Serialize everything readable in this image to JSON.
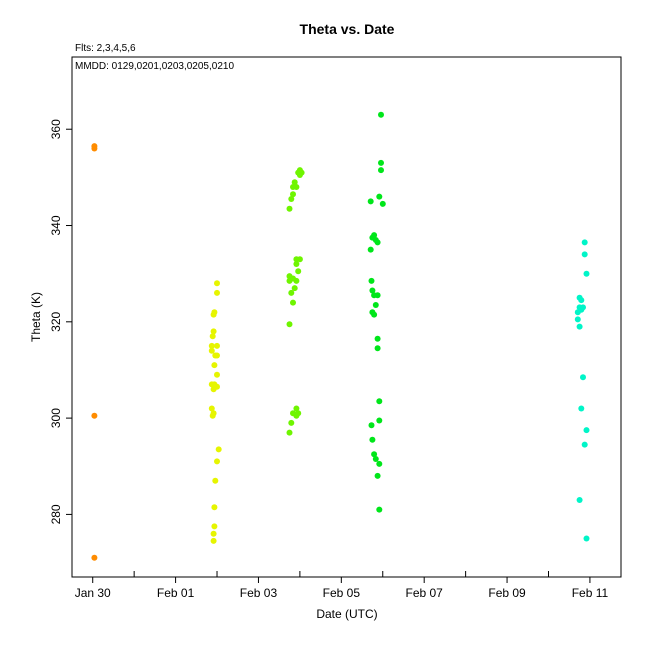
{
  "chart_data": {
    "type": "scatter",
    "title": "Theta  vs. Date",
    "subtitle": "Flts: 2,3,4,5,6",
    "annotation": "MMDD: 0129,0201,0203,0205,0210",
    "xlabel": "Date (UTC)",
    "ylabel": "Theta (K)",
    "xlim": [
      "2012-01-29 12:00",
      "2012-02-11 18:00"
    ],
    "ylim": [
      267,
      375
    ],
    "x_tick_labels": [
      "Jan 30",
      "Feb 01",
      "Feb 03",
      "Feb 05",
      "Feb 07",
      "Feb 09",
      "Feb 11"
    ],
    "y_tick_labels": [
      "280",
      "300",
      "320",
      "340",
      "360"
    ],
    "grid": false,
    "series": [
      {
        "color": "#ff8c00",
        "points": [
          [
            "2012-01-30 01:00",
            356.5
          ],
          [
            "2012-01-30 01:00",
            356.0
          ],
          [
            "2012-01-30 01:00",
            300.5
          ],
          [
            "2012-01-30 01:00",
            271.0
          ]
        ]
      },
      {
        "color": "#e6f500",
        "points": [
          [
            "2012-02-01 21:00",
            302.0
          ],
          [
            "2012-02-01 21:00",
            315.0
          ],
          [
            "2012-02-01 21:00",
            314.0
          ],
          [
            "2012-02-01 21:00",
            307.0
          ],
          [
            "2012-02-01 21:30",
            300.5
          ],
          [
            "2012-02-01 21:30",
            317.0
          ],
          [
            "2012-02-01 22:00",
            321.5
          ],
          [
            "2012-02-01 22:00",
            318.0
          ],
          [
            "2012-02-01 22:00",
            306.0
          ],
          [
            "2012-02-01 22:00",
            301.0
          ],
          [
            "2012-02-01 22:00",
            276.0
          ],
          [
            "2012-02-01 22:00",
            274.5
          ],
          [
            "2012-02-01 22:30",
            322.0
          ],
          [
            "2012-02-01 22:30",
            311.0
          ],
          [
            "2012-02-01 22:30",
            307.0
          ],
          [
            "2012-02-01 22:30",
            281.5
          ],
          [
            "2012-02-01 22:30",
            277.5
          ],
          [
            "2012-02-01 23:00",
            313.0
          ],
          [
            "2012-02-01 23:00",
            287.0
          ],
          [
            "2012-02-02 00:00",
            328.0
          ],
          [
            "2012-02-02 00:00",
            326.0
          ],
          [
            "2012-02-02 00:00",
            315.0
          ],
          [
            "2012-02-02 00:00",
            313.0
          ],
          [
            "2012-02-02 00:00",
            309.0
          ],
          [
            "2012-02-02 00:00",
            306.5
          ],
          [
            "2012-02-02 00:00",
            291.0
          ],
          [
            "2012-02-02 01:00",
            293.5
          ]
        ]
      },
      {
        "color": "#6ff500",
        "points": [
          [
            "2012-02-03 18:00",
            343.5
          ],
          [
            "2012-02-03 18:00",
            329.5
          ],
          [
            "2012-02-03 18:00",
            328.5
          ],
          [
            "2012-02-03 18:00",
            319.5
          ],
          [
            "2012-02-03 18:00",
            297.0
          ],
          [
            "2012-02-03 19:00",
            345.5
          ],
          [
            "2012-02-03 19:00",
            326.0
          ],
          [
            "2012-02-03 19:00",
            299.0
          ],
          [
            "2012-02-03 20:00",
            348.0
          ],
          [
            "2012-02-03 20:00",
            346.5
          ],
          [
            "2012-02-03 20:00",
            329.0
          ],
          [
            "2012-02-03 20:00",
            324.0
          ],
          [
            "2012-02-03 20:00",
            301.0
          ],
          [
            "2012-02-03 21:00",
            349.0
          ],
          [
            "2012-02-03 21:00",
            327.0
          ],
          [
            "2012-02-03 22:00",
            348.0
          ],
          [
            "2012-02-03 22:00",
            333.0
          ],
          [
            "2012-02-03 22:00",
            332.0
          ],
          [
            "2012-02-03 22:00",
            328.5
          ],
          [
            "2012-02-03 22:00",
            302.0
          ],
          [
            "2012-02-03 22:00",
            300.5
          ],
          [
            "2012-02-03 23:00",
            351.0
          ],
          [
            "2012-02-03 23:00",
            330.5
          ],
          [
            "2012-02-03 23:00",
            301.0
          ],
          [
            "2012-02-04 00:00",
            351.5
          ],
          [
            "2012-02-04 00:00",
            350.5
          ],
          [
            "2012-02-04 00:00",
            333.0
          ],
          [
            "2012-02-04 01:00",
            351.0
          ]
        ]
      },
      {
        "color": "#00e61a",
        "points": [
          [
            "2012-02-05 17:00",
            345.0
          ],
          [
            "2012-02-05 17:00",
            335.0
          ],
          [
            "2012-02-05 17:30",
            328.5
          ],
          [
            "2012-02-05 17:30",
            298.5
          ],
          [
            "2012-02-05 18:00",
            337.5
          ],
          [
            "2012-02-05 18:00",
            326.5
          ],
          [
            "2012-02-05 18:00",
            322.0
          ],
          [
            "2012-02-05 18:00",
            295.5
          ],
          [
            "2012-02-05 19:00",
            338.0
          ],
          [
            "2012-02-05 19:00",
            325.5
          ],
          [
            "2012-02-05 19:00",
            321.5
          ],
          [
            "2012-02-05 19:00",
            292.5
          ],
          [
            "2012-02-05 20:00",
            337.0
          ],
          [
            "2012-02-05 20:00",
            323.5
          ],
          [
            "2012-02-05 20:00",
            291.5
          ],
          [
            "2012-02-05 21:00",
            336.5
          ],
          [
            "2012-02-05 21:00",
            325.5
          ],
          [
            "2012-02-05 21:00",
            316.5
          ],
          [
            "2012-02-05 21:00",
            314.5
          ],
          [
            "2012-02-05 21:00",
            288.0
          ],
          [
            "2012-02-05 22:00",
            346.0
          ],
          [
            "2012-02-05 22:00",
            303.5
          ],
          [
            "2012-02-05 22:00",
            299.5
          ],
          [
            "2012-02-05 22:00",
            290.5
          ],
          [
            "2012-02-05 22:00",
            281.0
          ],
          [
            "2012-02-05 23:00",
            363.0
          ],
          [
            "2012-02-05 23:00",
            353.0
          ],
          [
            "2012-02-05 23:00",
            351.5
          ],
          [
            "2012-02-06 00:00",
            344.5
          ]
        ]
      },
      {
        "color": "#00f5c8",
        "points": [
          [
            "2012-02-10 17:00",
            322.0
          ],
          [
            "2012-02-10 17:00",
            320.5
          ],
          [
            "2012-02-10 18:00",
            325.0
          ],
          [
            "2012-02-10 18:00",
            323.0
          ],
          [
            "2012-02-10 18:00",
            319.0
          ],
          [
            "2012-02-10 19:00",
            324.5
          ],
          [
            "2012-02-10 19:00",
            322.5
          ],
          [
            "2012-02-10 19:00",
            302.0
          ],
          [
            "2012-02-10 20:00",
            323.0
          ],
          [
            "2012-02-10 20:00",
            308.5
          ],
          [
            "2012-02-10 21:00",
            336.5
          ],
          [
            "2012-02-10 21:00",
            334.0
          ],
          [
            "2012-02-10 21:00",
            294.5
          ],
          [
            "2012-02-10 22:00",
            330.0
          ],
          [
            "2012-02-10 22:00",
            297.5
          ],
          [
            "2012-02-10 22:00",
            275.0
          ],
          [
            "2012-02-10 18:00",
            283.0
          ]
        ]
      }
    ]
  }
}
